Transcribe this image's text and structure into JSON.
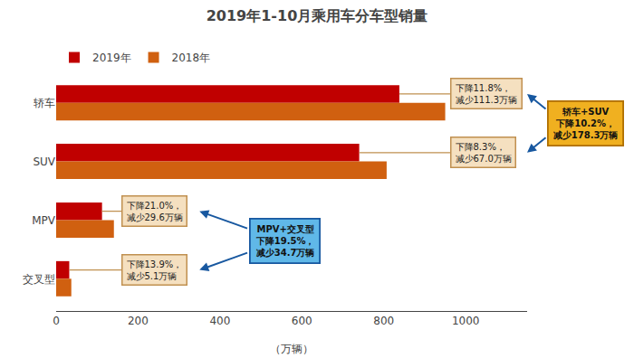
{
  "chart_data": {
    "type": "bar",
    "orientation": "horizontal",
    "title": "2019年1-10月乘用车分车型销量",
    "categories": [
      "交叉型",
      "MPV",
      "SUV",
      "轿车"
    ],
    "series": [
      {
        "name": "2019年",
        "color": "#C00000",
        "values": [
          32,
          112,
          740,
          838
        ]
      },
      {
        "name": "2018年",
        "color": "#D06010",
        "values": [
          37,
          141,
          807,
          950
        ]
      }
    ],
    "xlabel": "（万辆）",
    "xlim": [
      0,
      1150
    ],
    "xticks": [
      0,
      200,
      400,
      600,
      800,
      1000
    ],
    "grid": false,
    "legend": "upper left",
    "annotations": [
      {
        "text": "下降11.8%，\n减少111.3万辆",
        "category": "轿车",
        "color": "#F5E0C0",
        "border_color": "#C09050"
      },
      {
        "text": "下降8.3%，\n减少67.0万辆",
        "category": "SUV",
        "color": "#F5E0C0",
        "border_color": "#C09050"
      },
      {
        "text": "下降21.0%，\n减少29.6万辆",
        "category": "MPV",
        "color": "#F5E0C0",
        "border_color": "#C09050"
      },
      {
        "text": "下降13.9%，\n减少5.1万辆",
        "category": "交叉型",
        "color": "#F5E0C0",
        "border_color": "#C09050"
      },
      {
        "text": "MPV+交叉型\n下降19.5%，\n减少34.7万辆",
        "categories": [
          "MPV",
          "交叉型"
        ],
        "color": "#60B8E8",
        "border_color": "#1858A0",
        "arrow_color": "#1858A0"
      },
      {
        "text": "轿车+SUV\n下降10.2%，\n减少178.3万辆",
        "categories": [
          "轿车",
          "SUV"
        ],
        "color": "#F0B020",
        "border_color": "#B07000",
        "arrow_color": "#1858A0"
      }
    ]
  }
}
